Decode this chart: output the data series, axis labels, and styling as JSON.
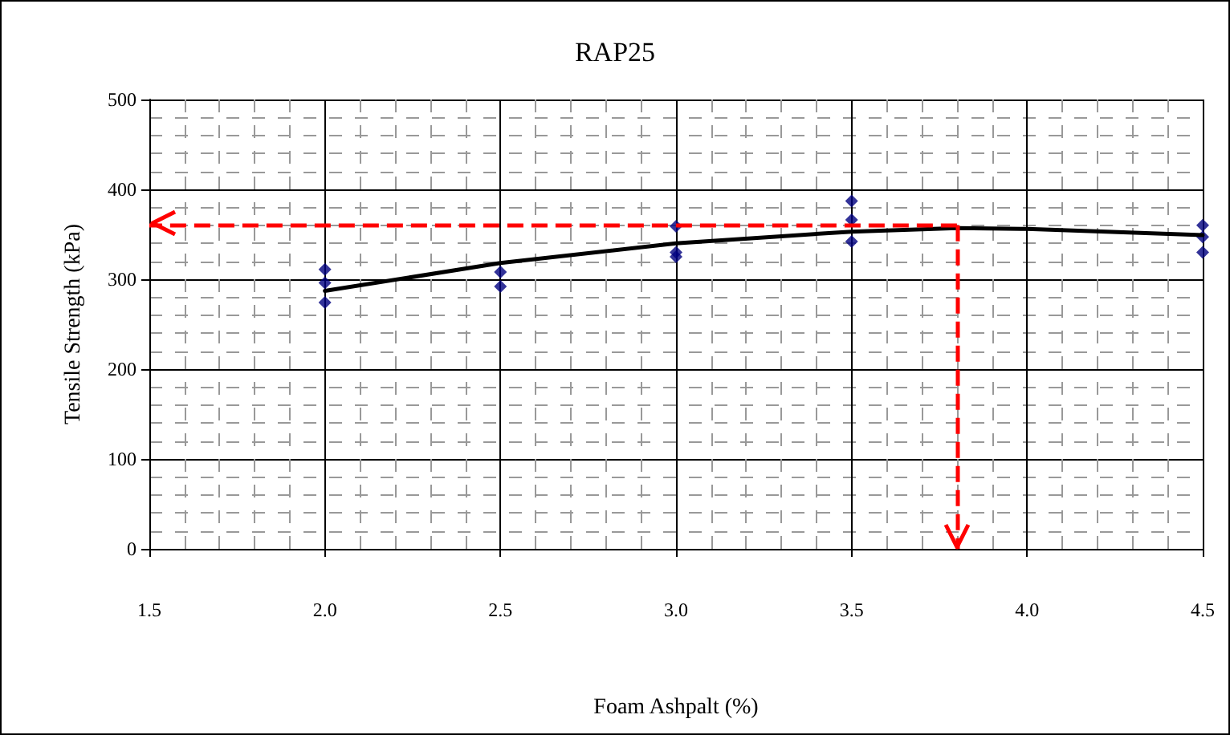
{
  "chart_data": {
    "type": "scatter",
    "title": "RAP25",
    "xlabel": "Foam Ashpalt (%)",
    "ylabel": "Tensile Strength (kPa)",
    "xlim": [
      1.5,
      4.5
    ],
    "xticks": [
      {
        "value": 1.5,
        "label": "1.5"
      },
      {
        "value": 2,
        "label": "2.0"
      },
      {
        "value": 2.5,
        "label": "2.5"
      },
      {
        "value": 3,
        "label": "3.0"
      },
      {
        "value": 3.5,
        "label": "3.5"
      },
      {
        "value": 4,
        "label": "4.0"
      },
      {
        "value": 4.5,
        "label": "4.5"
      }
    ],
    "ylim": [
      0,
      500
    ],
    "yticks": [
      0,
      100,
      200,
      300,
      400,
      500
    ],
    "grid": true,
    "marker": "diamond",
    "series": [
      {
        "color": "#000080",
        "x": [
          2,
          2,
          2,
          2.5,
          2.5,
          3,
          3,
          3,
          3.5,
          3.5,
          3.5,
          4.5,
          4.5,
          4.5
        ],
        "values": [
          311,
          296,
          274,
          308,
          292,
          359,
          330,
          325,
          387,
          366,
          342,
          360,
          347,
          330
        ]
      },
      {
        "type": "line",
        "color": "#000000",
        "marker": "none",
        "line_style": "solid",
        "x": [
          2,
          2.5,
          3,
          3.5,
          3.8,
          4,
          4.5
        ],
        "values": [
          287,
          318,
          340,
          353,
          357,
          356,
          349
        ]
      }
    ],
    "ref_lines": [
      {
        "axis": "y",
        "value": 360,
        "color": "#ff0000",
        "line_style": "dashed"
      },
      {
        "axis": "x",
        "value": 3.8,
        "color": "#ff0000",
        "line_style": "dashed"
      }
    ]
  }
}
